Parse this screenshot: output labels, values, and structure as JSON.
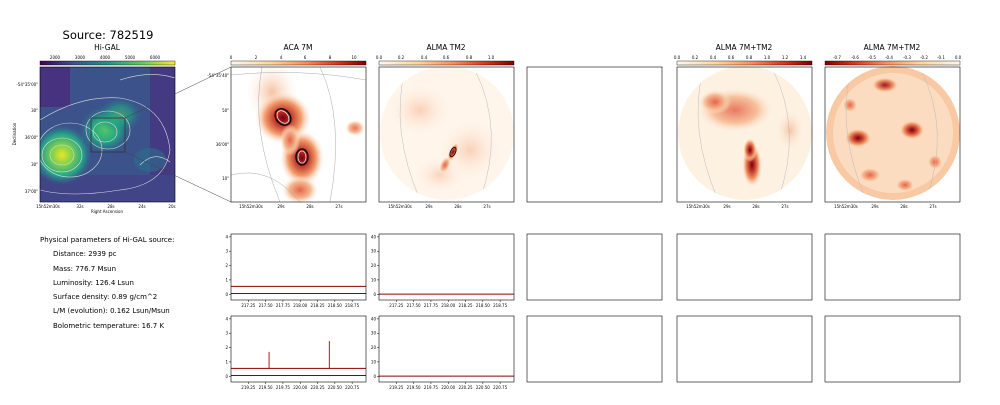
{
  "source_title": "Source: 782519",
  "panels": {
    "higal": {
      "title": "Hi-GAL",
      "cbar_ticks": [
        "2000",
        "3000",
        "4000",
        "5000",
        "6000"
      ],
      "ytick_labels": [
        "-54°35'00\"",
        "30\"",
        "36'00\"",
        "30\"",
        "37'00\""
      ],
      "xtick_labels": [
        "15h52m30s",
        "32s",
        "28s",
        "24s",
        "20s"
      ],
      "xlabel": "Right Ascension",
      "ylabel": "Declination"
    },
    "aca7m": {
      "title": "ACA 7M",
      "cbar_ticks": [
        "0",
        "2",
        "4",
        "6",
        "8",
        "10"
      ],
      "ytick_labels": [
        "-54°35'40\"",
        "50\"",
        "36'00\"",
        "10\""
      ],
      "xtick_labels": [
        "15h52m30s",
        "29s",
        "28s",
        "27s"
      ]
    },
    "tm2": {
      "title": "ALMA TM2",
      "cbar_ticks": [
        "0.0",
        "0.2",
        "0.4",
        "0.6",
        "0.8",
        "1.0"
      ],
      "xtick_labels": [
        "15h52m30s",
        "29s",
        "28s",
        "27s"
      ]
    },
    "tm2_7m": {
      "title": "ALMA 7M+TM2",
      "cbar_ticks": [
        "0.0",
        "0.2",
        "0.4",
        "0.6",
        "0.8",
        "1.0",
        "1.2",
        "1.4"
      ],
      "xtick_labels": [
        "15h52m30s",
        "29s",
        "28s",
        "27s"
      ]
    },
    "tm2_7m_b": {
      "title": "ALMA 7M+TM2",
      "cbar_ticks": [
        "-0.7",
        "-0.6",
        "-0.5",
        "-0.4",
        "-0.3",
        "-0.2",
        "-0.1",
        "0.0"
      ],
      "xtick_labels": [
        "15h52m30s",
        "29s",
        "28s",
        "27s"
      ]
    }
  },
  "stats": {
    "header": "Physical parameters of Hi-GAL source:",
    "distance": "Distance: 2939 pc",
    "mass": "Mass: 776.7 Msun",
    "luminosity": "Luminosity: 126.4 Lsun",
    "surface_density": "Surface density: 0.89 g/cm^2",
    "lm": "L/M (evolution): 0.162 Lsun/Msun",
    "tbol": "Bolometric temperature: 16.7 K"
  },
  "chart_data": [
    {
      "type": "line",
      "panel": "spectrum-aca-row1",
      "x": [
        217.25,
        217.5,
        217.75,
        218.0,
        218.25,
        218.5,
        218.75
      ],
      "xticks": [
        "217.25",
        "217.50",
        "217.75",
        "218.00",
        "218.25",
        "218.50",
        "218.75"
      ],
      "yticks": [
        "0",
        "1",
        "2",
        "3",
        "4"
      ],
      "xlim": [
        217.0,
        218.95
      ],
      "ylim": [
        -0.4,
        4.2
      ],
      "series": [
        {
          "values": [
            0.55,
            0.55,
            0.55,
            0.55,
            0.55,
            0.55,
            0.55
          ]
        },
        {
          "values": [
            0.05,
            0.05,
            0.05,
            0.05,
            0.05,
            0.05,
            0.05
          ]
        }
      ]
    },
    {
      "type": "line",
      "panel": "spectrum-tm2-row1",
      "x": [
        217.25,
        217.5,
        217.75,
        218.0,
        218.25,
        218.5,
        218.75
      ],
      "xticks": [
        "217.25",
        "217.50",
        "217.75",
        "218.00",
        "218.25",
        "218.50",
        "218.75"
      ],
      "yticks": [
        "0",
        "10",
        "20",
        "30",
        "40"
      ],
      "xlim": [
        217.0,
        218.95
      ],
      "ylim": [
        -4,
        42
      ],
      "series": [
        {
          "values": [
            0.1,
            0.1,
            0.1,
            0.1,
            0.1,
            0.1,
            0.1
          ]
        }
      ]
    },
    {
      "type": "line",
      "panel": "spectrum-aca-row2",
      "x": [
        219.25,
        219.5,
        219.75,
        220.0,
        220.25,
        220.5,
        220.75
      ],
      "xticks": [
        "219.25",
        "219.50",
        "219.75",
        "220.00",
        "220.25",
        "220.50",
        "220.75"
      ],
      "yticks": [
        "0",
        "1",
        "2",
        "3",
        "4"
      ],
      "xlim": [
        219.0,
        220.95
      ],
      "ylim": [
        -0.4,
        4.2
      ],
      "series": [
        {
          "values": [
            0.55,
            0.55,
            0.55,
            0.55,
            0.55,
            0.55,
            0.55
          ]
        },
        {
          "values": [
            0.05,
            0.05,
            0.05,
            0.05,
            0.05,
            0.05,
            0.05
          ]
        }
      ],
      "peaks": [
        {
          "x": 219.55,
          "y": 1.7
        },
        {
          "x": 220.42,
          "y": 2.45
        }
      ]
    },
    {
      "type": "line",
      "panel": "spectrum-tm2-row2",
      "x": [
        219.25,
        219.5,
        219.75,
        220.0,
        220.25,
        220.5,
        220.75
      ],
      "xticks": [
        "219.25",
        "219.50",
        "219.75",
        "220.00",
        "220.25",
        "220.50",
        "220.75"
      ],
      "yticks": [
        "0",
        "10",
        "20",
        "30",
        "40"
      ],
      "xlim": [
        219.0,
        220.95
      ],
      "ylim": [
        -4,
        42
      ],
      "series": [
        {
          "values": [
            0.1,
            0.1,
            0.1,
            0.1,
            0.1,
            0.1,
            0.1
          ]
        }
      ]
    }
  ]
}
